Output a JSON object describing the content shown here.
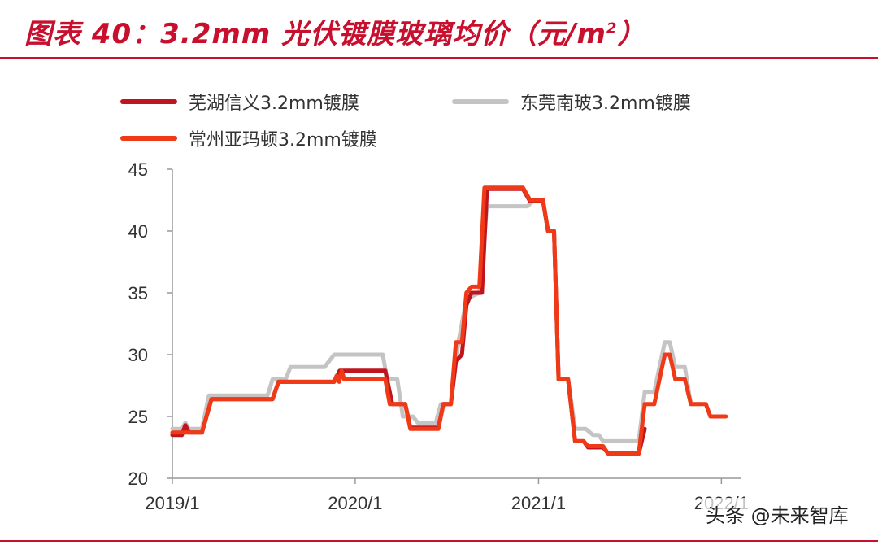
{
  "header": {
    "title_main": "图表 40：3.2mm 光伏镀膜玻璃均价（元/m",
    "title_sup": "2",
    "title_end": "）"
  },
  "watermark": "头条 @未来智库",
  "colors": {
    "accent": "#c8102e",
    "series1": "#c0141e",
    "series2": "#c4c4c4",
    "series3": "#f03a17"
  },
  "chart_data": {
    "type": "line",
    "ylim": [
      20,
      45
    ],
    "xlim": [
      "2019-01-01",
      "2022-02-10"
    ],
    "yticks": [
      20,
      25,
      30,
      35,
      40,
      45
    ],
    "xticks": [
      "2019/1",
      "2020/1",
      "2021/1",
      "2022/1"
    ],
    "grid": false,
    "legend": "top-left",
    "series": [
      {
        "name": "芜湖信义3.2mm镀膜",
        "color": "#c0141e",
        "data": [
          [
            "2019-01-01",
            23.5
          ],
          [
            "2019-01-20",
            23.5
          ],
          [
            "2019-01-27",
            24.3
          ],
          [
            "2019-02-03",
            23.7
          ],
          [
            "2019-03-01",
            23.7
          ],
          [
            "2019-03-20",
            26.4
          ],
          [
            "2019-06-01",
            26.4
          ],
          [
            "2019-07-20",
            26.4
          ],
          [
            "2019-08-01",
            27.8
          ],
          [
            "2019-10-01",
            27.8
          ],
          [
            "2019-11-20",
            27.8
          ],
          [
            "2019-12-01",
            28.7
          ],
          [
            "2020-01-20",
            28.7
          ],
          [
            "2020-03-01",
            28.7
          ],
          [
            "2020-03-15",
            26.0
          ],
          [
            "2020-04-10",
            26.0
          ],
          [
            "2020-04-20",
            24.1
          ],
          [
            "2020-06-15",
            24.1
          ],
          [
            "2020-06-25",
            26.0
          ],
          [
            "2020-07-10",
            26.0
          ],
          [
            "2020-07-20",
            29.5
          ],
          [
            "2020-08-01",
            30.0
          ],
          [
            "2020-08-10",
            34.0
          ],
          [
            "2020-08-20",
            35.0
          ],
          [
            "2020-09-10",
            35.0
          ],
          [
            "2020-09-20",
            43.4
          ],
          [
            "2020-12-01",
            43.4
          ],
          [
            "2020-12-15",
            42.4
          ],
          [
            "2021-01-10",
            42.4
          ],
          [
            "2021-01-20",
            40.0
          ],
          [
            "2021-02-01",
            40.0
          ],
          [
            "2021-02-10",
            28.0
          ],
          [
            "2021-03-01",
            28.0
          ],
          [
            "2021-03-15",
            23.0
          ],
          [
            "2021-04-01",
            23.0
          ],
          [
            "2021-04-10",
            22.5
          ],
          [
            "2021-05-10",
            22.5
          ],
          [
            "2021-05-20",
            22.0
          ],
          [
            "2021-07-20",
            22.0
          ],
          [
            "2021-08-01",
            24.0
          ]
        ]
      },
      {
        "name": "东莞南玻3.2mm镀膜",
        "color": "#c4c4c4",
        "data": [
          [
            "2019-01-01",
            24.0
          ],
          [
            "2019-01-20",
            24.0
          ],
          [
            "2019-01-27",
            24.5
          ],
          [
            "2019-02-03",
            24.0
          ],
          [
            "2019-03-01",
            24.0
          ],
          [
            "2019-03-15",
            26.7
          ],
          [
            "2019-06-20",
            26.7
          ],
          [
            "2019-07-10",
            26.7
          ],
          [
            "2019-07-20",
            28.0
          ],
          [
            "2019-08-15",
            28.0
          ],
          [
            "2019-08-25",
            29.0
          ],
          [
            "2019-11-01",
            29.0
          ],
          [
            "2019-11-20",
            30.0
          ],
          [
            "2020-02-25",
            30.0
          ],
          [
            "2020-03-05",
            28.0
          ],
          [
            "2020-03-25",
            28.0
          ],
          [
            "2020-04-05",
            25.0
          ],
          [
            "2020-04-25",
            25.0
          ],
          [
            "2020-05-05",
            24.5
          ],
          [
            "2020-06-10",
            24.5
          ],
          [
            "2020-06-20",
            26.0
          ],
          [
            "2020-07-10",
            26.0
          ],
          [
            "2020-07-25",
            31.0
          ],
          [
            "2020-08-10",
            34.5
          ],
          [
            "2020-09-05",
            35.0
          ],
          [
            "2020-09-20",
            42.0
          ],
          [
            "2020-12-10",
            42.0
          ],
          [
            "2020-12-20",
            42.4
          ],
          [
            "2021-01-10",
            42.4
          ],
          [
            "2021-01-20",
            40.0
          ],
          [
            "2021-02-01",
            40.0
          ],
          [
            "2021-02-10",
            28.0
          ],
          [
            "2021-03-01",
            28.0
          ],
          [
            "2021-03-15",
            24.0
          ],
          [
            "2021-04-05",
            24.0
          ],
          [
            "2021-04-20",
            23.5
          ],
          [
            "2021-05-01",
            23.5
          ],
          [
            "2021-05-10",
            23.0
          ],
          [
            "2021-07-20",
            23.0
          ],
          [
            "2021-08-01",
            27.0
          ],
          [
            "2021-08-20",
            27.0
          ],
          [
            "2021-09-10",
            31.0
          ],
          [
            "2021-09-20",
            31.0
          ],
          [
            "2021-10-01",
            29.0
          ],
          [
            "2021-10-20",
            29.0
          ],
          [
            "2021-11-01",
            26.0
          ],
          [
            "2021-11-20",
            26.0
          ]
        ]
      },
      {
        "name": "常州亚玛顿3.2mm镀膜",
        "color": "#f03a17",
        "data": [
          [
            "2019-01-01",
            23.7
          ],
          [
            "2019-03-01",
            23.7
          ],
          [
            "2019-03-20",
            26.4
          ],
          [
            "2019-06-01",
            26.4
          ],
          [
            "2019-07-20",
            26.4
          ],
          [
            "2019-08-01",
            27.8
          ],
          [
            "2019-10-01",
            27.8
          ],
          [
            "2019-11-20",
            27.8
          ],
          [
            "2019-11-25",
            28.3
          ],
          [
            "2019-11-30",
            27.8
          ],
          [
            "2019-12-05",
            28.7
          ],
          [
            "2019-12-10",
            28.0
          ],
          [
            "2020-01-20",
            28.0
          ],
          [
            "2020-03-01",
            28.0
          ],
          [
            "2020-03-10",
            26.0
          ],
          [
            "2020-04-10",
            26.0
          ],
          [
            "2020-04-20",
            24.0
          ],
          [
            "2020-06-15",
            24.0
          ],
          [
            "2020-06-25",
            26.0
          ],
          [
            "2020-07-10",
            26.0
          ],
          [
            "2020-07-20",
            31.0
          ],
          [
            "2020-08-01",
            31.0
          ],
          [
            "2020-08-10",
            35.0
          ],
          [
            "2020-08-20",
            35.5
          ],
          [
            "2020-09-05",
            35.5
          ],
          [
            "2020-09-15",
            43.5
          ],
          [
            "2020-12-01",
            43.5
          ],
          [
            "2020-12-15",
            42.5
          ],
          [
            "2021-01-10",
            42.5
          ],
          [
            "2021-01-20",
            40.0
          ],
          [
            "2021-02-01",
            40.0
          ],
          [
            "2021-02-10",
            28.0
          ],
          [
            "2021-03-01",
            28.0
          ],
          [
            "2021-03-15",
            23.0
          ],
          [
            "2021-04-01",
            23.0
          ],
          [
            "2021-04-10",
            22.6
          ],
          [
            "2021-05-10",
            22.6
          ],
          [
            "2021-05-20",
            22.0
          ],
          [
            "2021-07-20",
            22.0
          ],
          [
            "2021-08-01",
            26.0
          ],
          [
            "2021-08-20",
            26.0
          ],
          [
            "2021-09-10",
            30.0
          ],
          [
            "2021-09-20",
            30.0
          ],
          [
            "2021-10-01",
            28.0
          ],
          [
            "2021-10-20",
            28.0
          ],
          [
            "2021-11-01",
            26.0
          ],
          [
            "2021-12-01",
            26.0
          ],
          [
            "2021-12-10",
            25.0
          ],
          [
            "2022-01-10",
            25.0
          ]
        ]
      }
    ]
  }
}
